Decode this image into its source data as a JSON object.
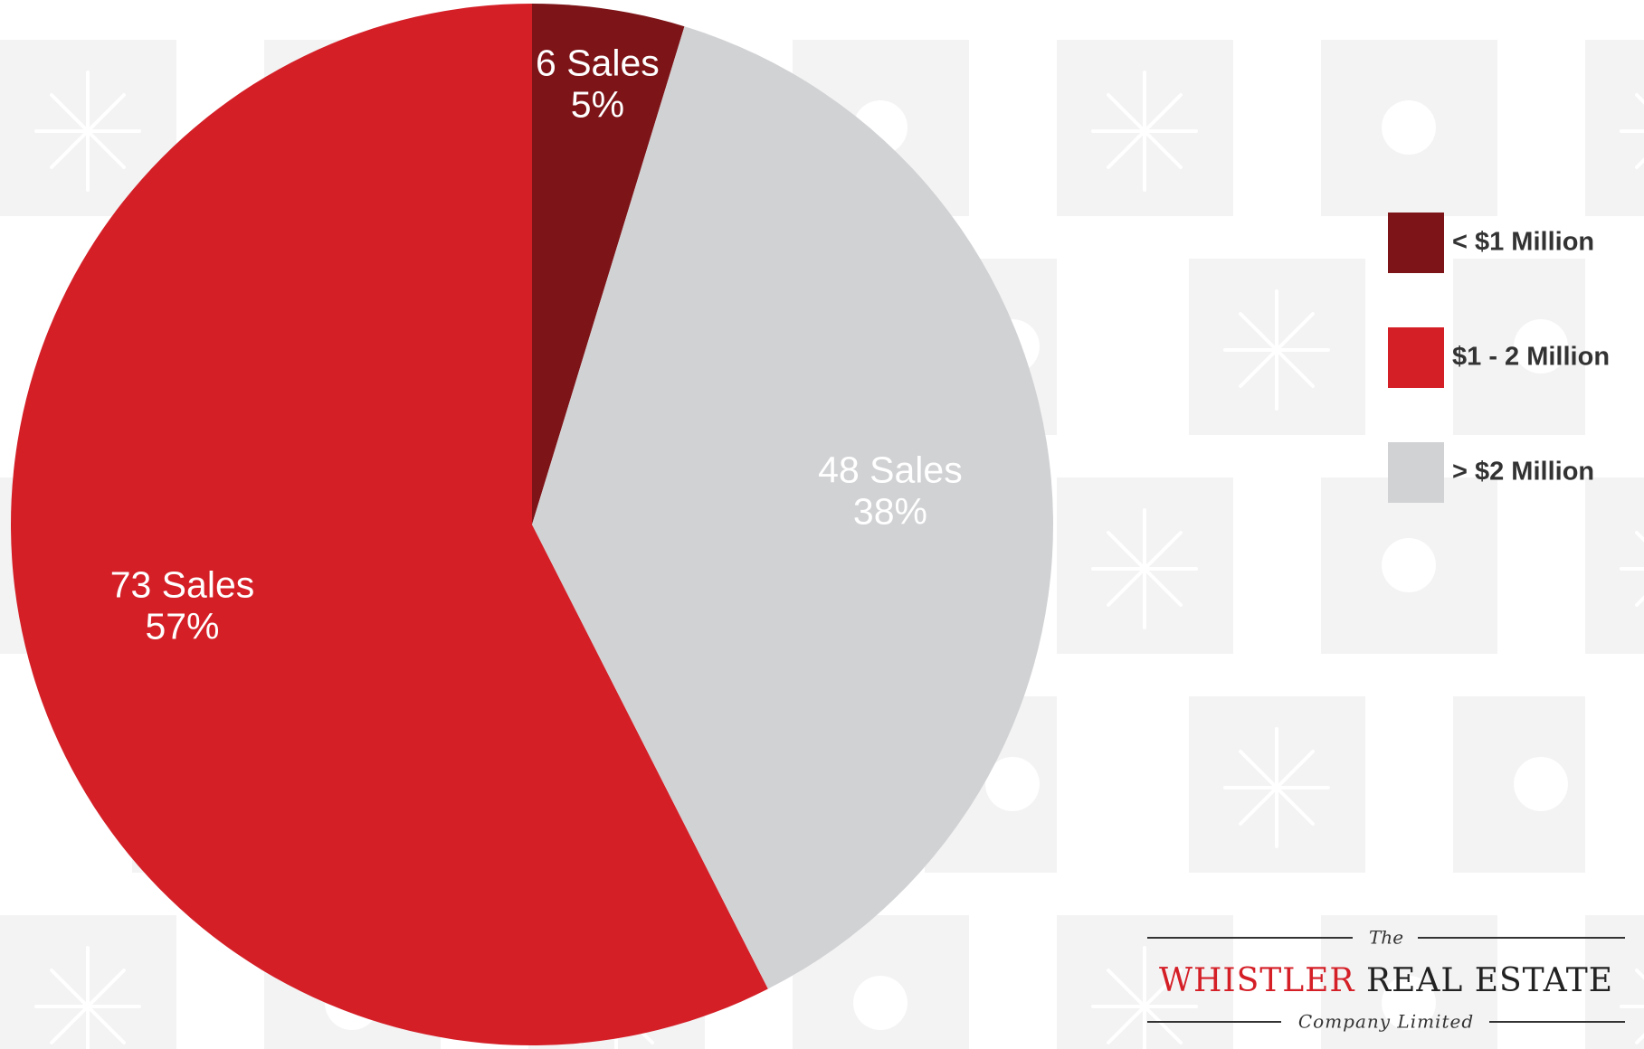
{
  "chart_data": {
    "type": "pie",
    "categories": [
      "< $1 Million",
      "$1 - 2 Million",
      "> $2 Million"
    ],
    "values": [
      6,
      73,
      48
    ],
    "value_labels": [
      "6 Sales",
      "73 Sales",
      "48 Sales"
    ],
    "percent_labels": [
      "5%",
      "57%",
      "38%"
    ],
    "colors": [
      "#7d1418",
      "#d41f27",
      "#d1d2d4"
    ],
    "legend": "right"
  },
  "logo": {
    "top": "The",
    "name_red": "WHISTLER",
    "name": "REAL ESTATE",
    "bottom": "Company Limited"
  }
}
